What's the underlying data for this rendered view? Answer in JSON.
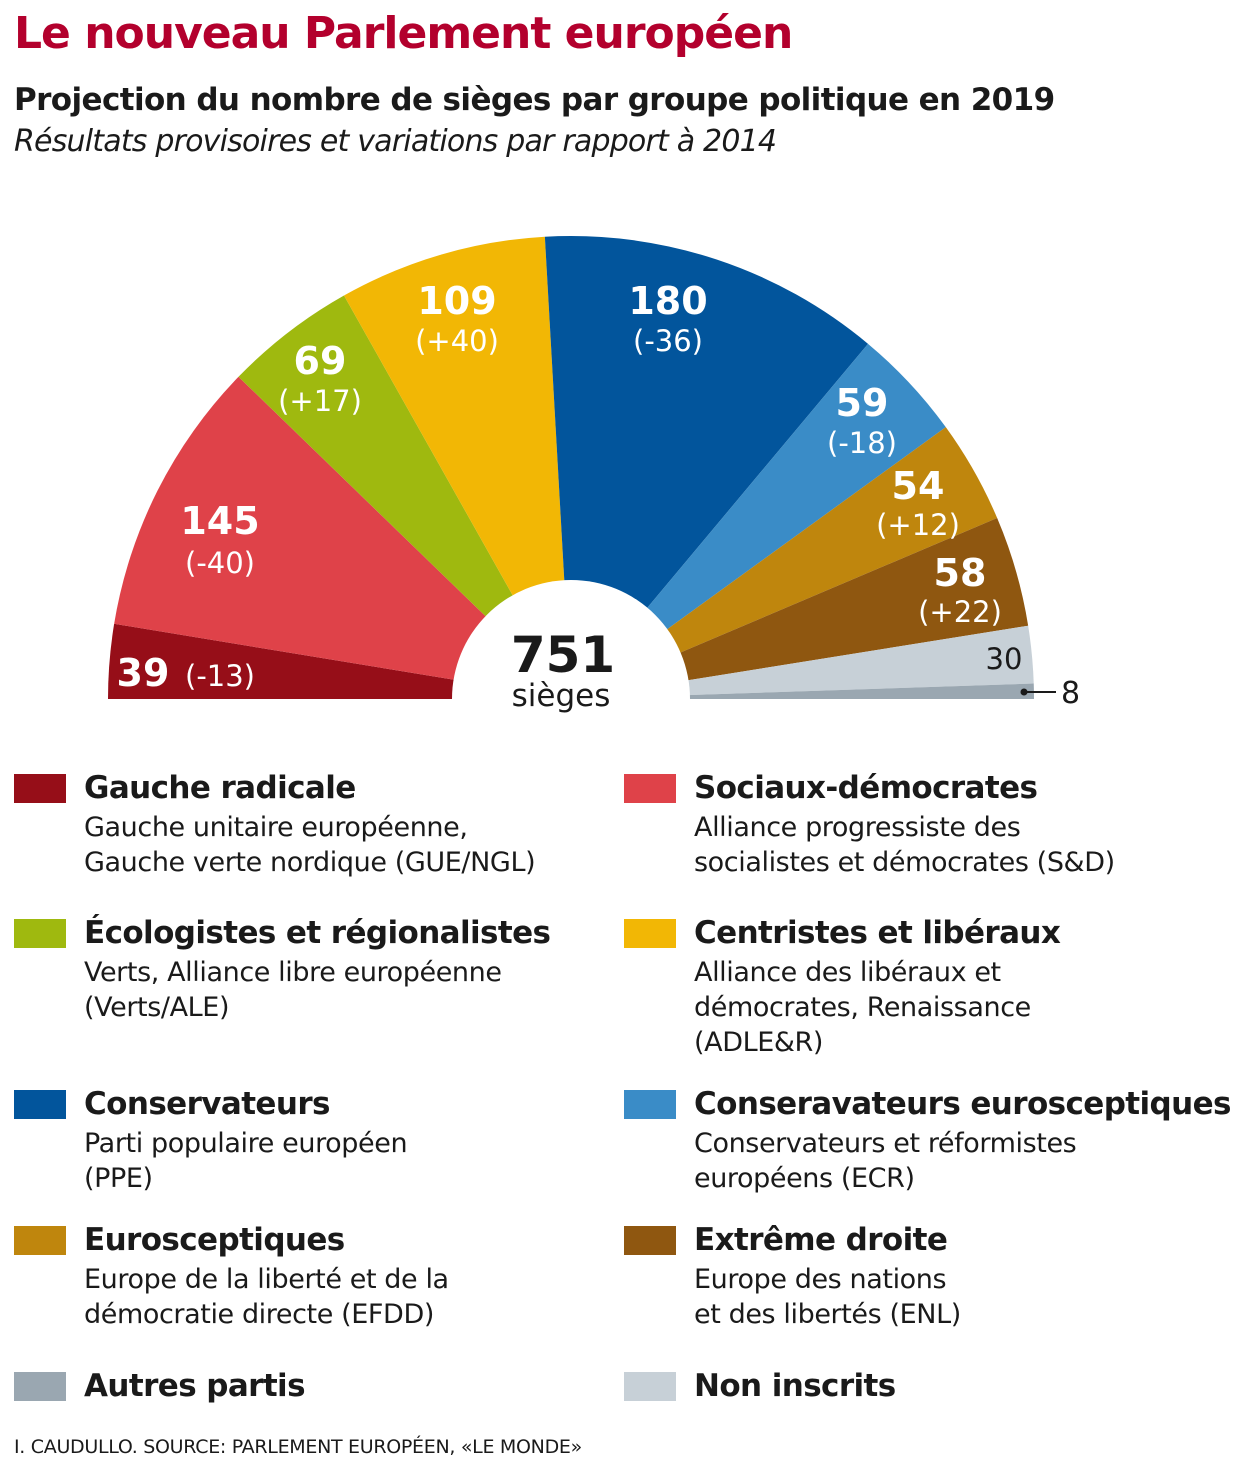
{
  "header": {
    "title": "Le nouveau Parlement européen",
    "subtitle": "Projection du nombre de sièges par groupe politique en 2019",
    "subsubtitle": "Résultats provisoires et variations par rapport à 2014"
  },
  "chart_data": {
    "type": "pie",
    "variant": "hemicycle",
    "title": "Projection du nombre de sièges par groupe politique en 2019",
    "subtitle": "Résultats provisoires et variations par rapport à 2014",
    "total": 751,
    "total_label": "sièges",
    "order": "left-to-right",
    "slices": [
      {
        "group": "Gauche radicale",
        "seats": 39,
        "change": "(-13)",
        "color": "#960e18"
      },
      {
        "group": "Sociaux-démocrates",
        "seats": 145,
        "change": "(-40)",
        "color": "#df4249"
      },
      {
        "group": "Écologistes et régionalistes",
        "seats": 69,
        "change": "(+17)",
        "color": "#9fb90f"
      },
      {
        "group": "Centristes et libéraux",
        "seats": 109,
        "change": "(+40)",
        "color": "#f2b705"
      },
      {
        "group": "Conservateurs",
        "seats": 180,
        "change": "(-36)",
        "color": "#02559c"
      },
      {
        "group": "Conseravateurs eurosceptiques",
        "seats": 59,
        "change": "(-18)",
        "color": "#3a8cc7"
      },
      {
        "group": "Eurosceptiques",
        "seats": 54,
        "change": "(+12)",
        "color": "#bf860d"
      },
      {
        "group": "Extrême droite",
        "seats": 58,
        "change": "(+22)",
        "color": "#8f5710"
      },
      {
        "group": "Non inscrits",
        "seats": 30,
        "change": "",
        "color": "#c7d0d7"
      },
      {
        "group": "Autres partis",
        "seats": 8,
        "change": "",
        "color": "#9aa7b1"
      }
    ]
  },
  "center": {
    "total": "751",
    "label": "sièges"
  },
  "legend": [
    {
      "name": "Gauche radicale",
      "desc": "Gauche unitaire européenne,\nGauche verte nordique (GUE/NGL)",
      "color": "#960e18"
    },
    {
      "name": "Sociaux-démocrates",
      "desc": "Alliance progressiste des\nsocialistes et démocrates (S&D)",
      "color": "#df4249"
    },
    {
      "name": "Écologistes et régionalistes",
      "desc": "Verts, Alliance libre européenne\n(Verts/ALE)",
      "color": "#9fb90f"
    },
    {
      "name": "Centristes et libéraux",
      "desc": "Alliance des libéraux et\ndémocrates, Renaissance\n(ADLE&R)",
      "color": "#f2b705"
    },
    {
      "name": "Conservateurs",
      "desc": "Parti populaire européen\n(PPE)",
      "color": "#02559c"
    },
    {
      "name": "Conseravateurs eurosceptiques",
      "desc": "Conservateurs et réformistes\neuropéens (ECR)",
      "color": "#3a8cc7"
    },
    {
      "name": "Eurosceptiques",
      "desc": "Europe de la liberté et de la\ndémocratie directe (EFDD)",
      "color": "#bf860d"
    },
    {
      "name": "Extrême droite",
      "desc": "Europe des nations\net des libertés (ENL)",
      "color": "#8f5710"
    },
    {
      "name": "Autres partis",
      "desc": "",
      "color": "#9aa7b1"
    },
    {
      "name": "Non inscrits",
      "desc": "",
      "color": "#c7d0d7"
    }
  ],
  "credit": "I. CAUDULLO. SOURCE: PARLEMENT EUROPÉEN, «LE MONDE»"
}
